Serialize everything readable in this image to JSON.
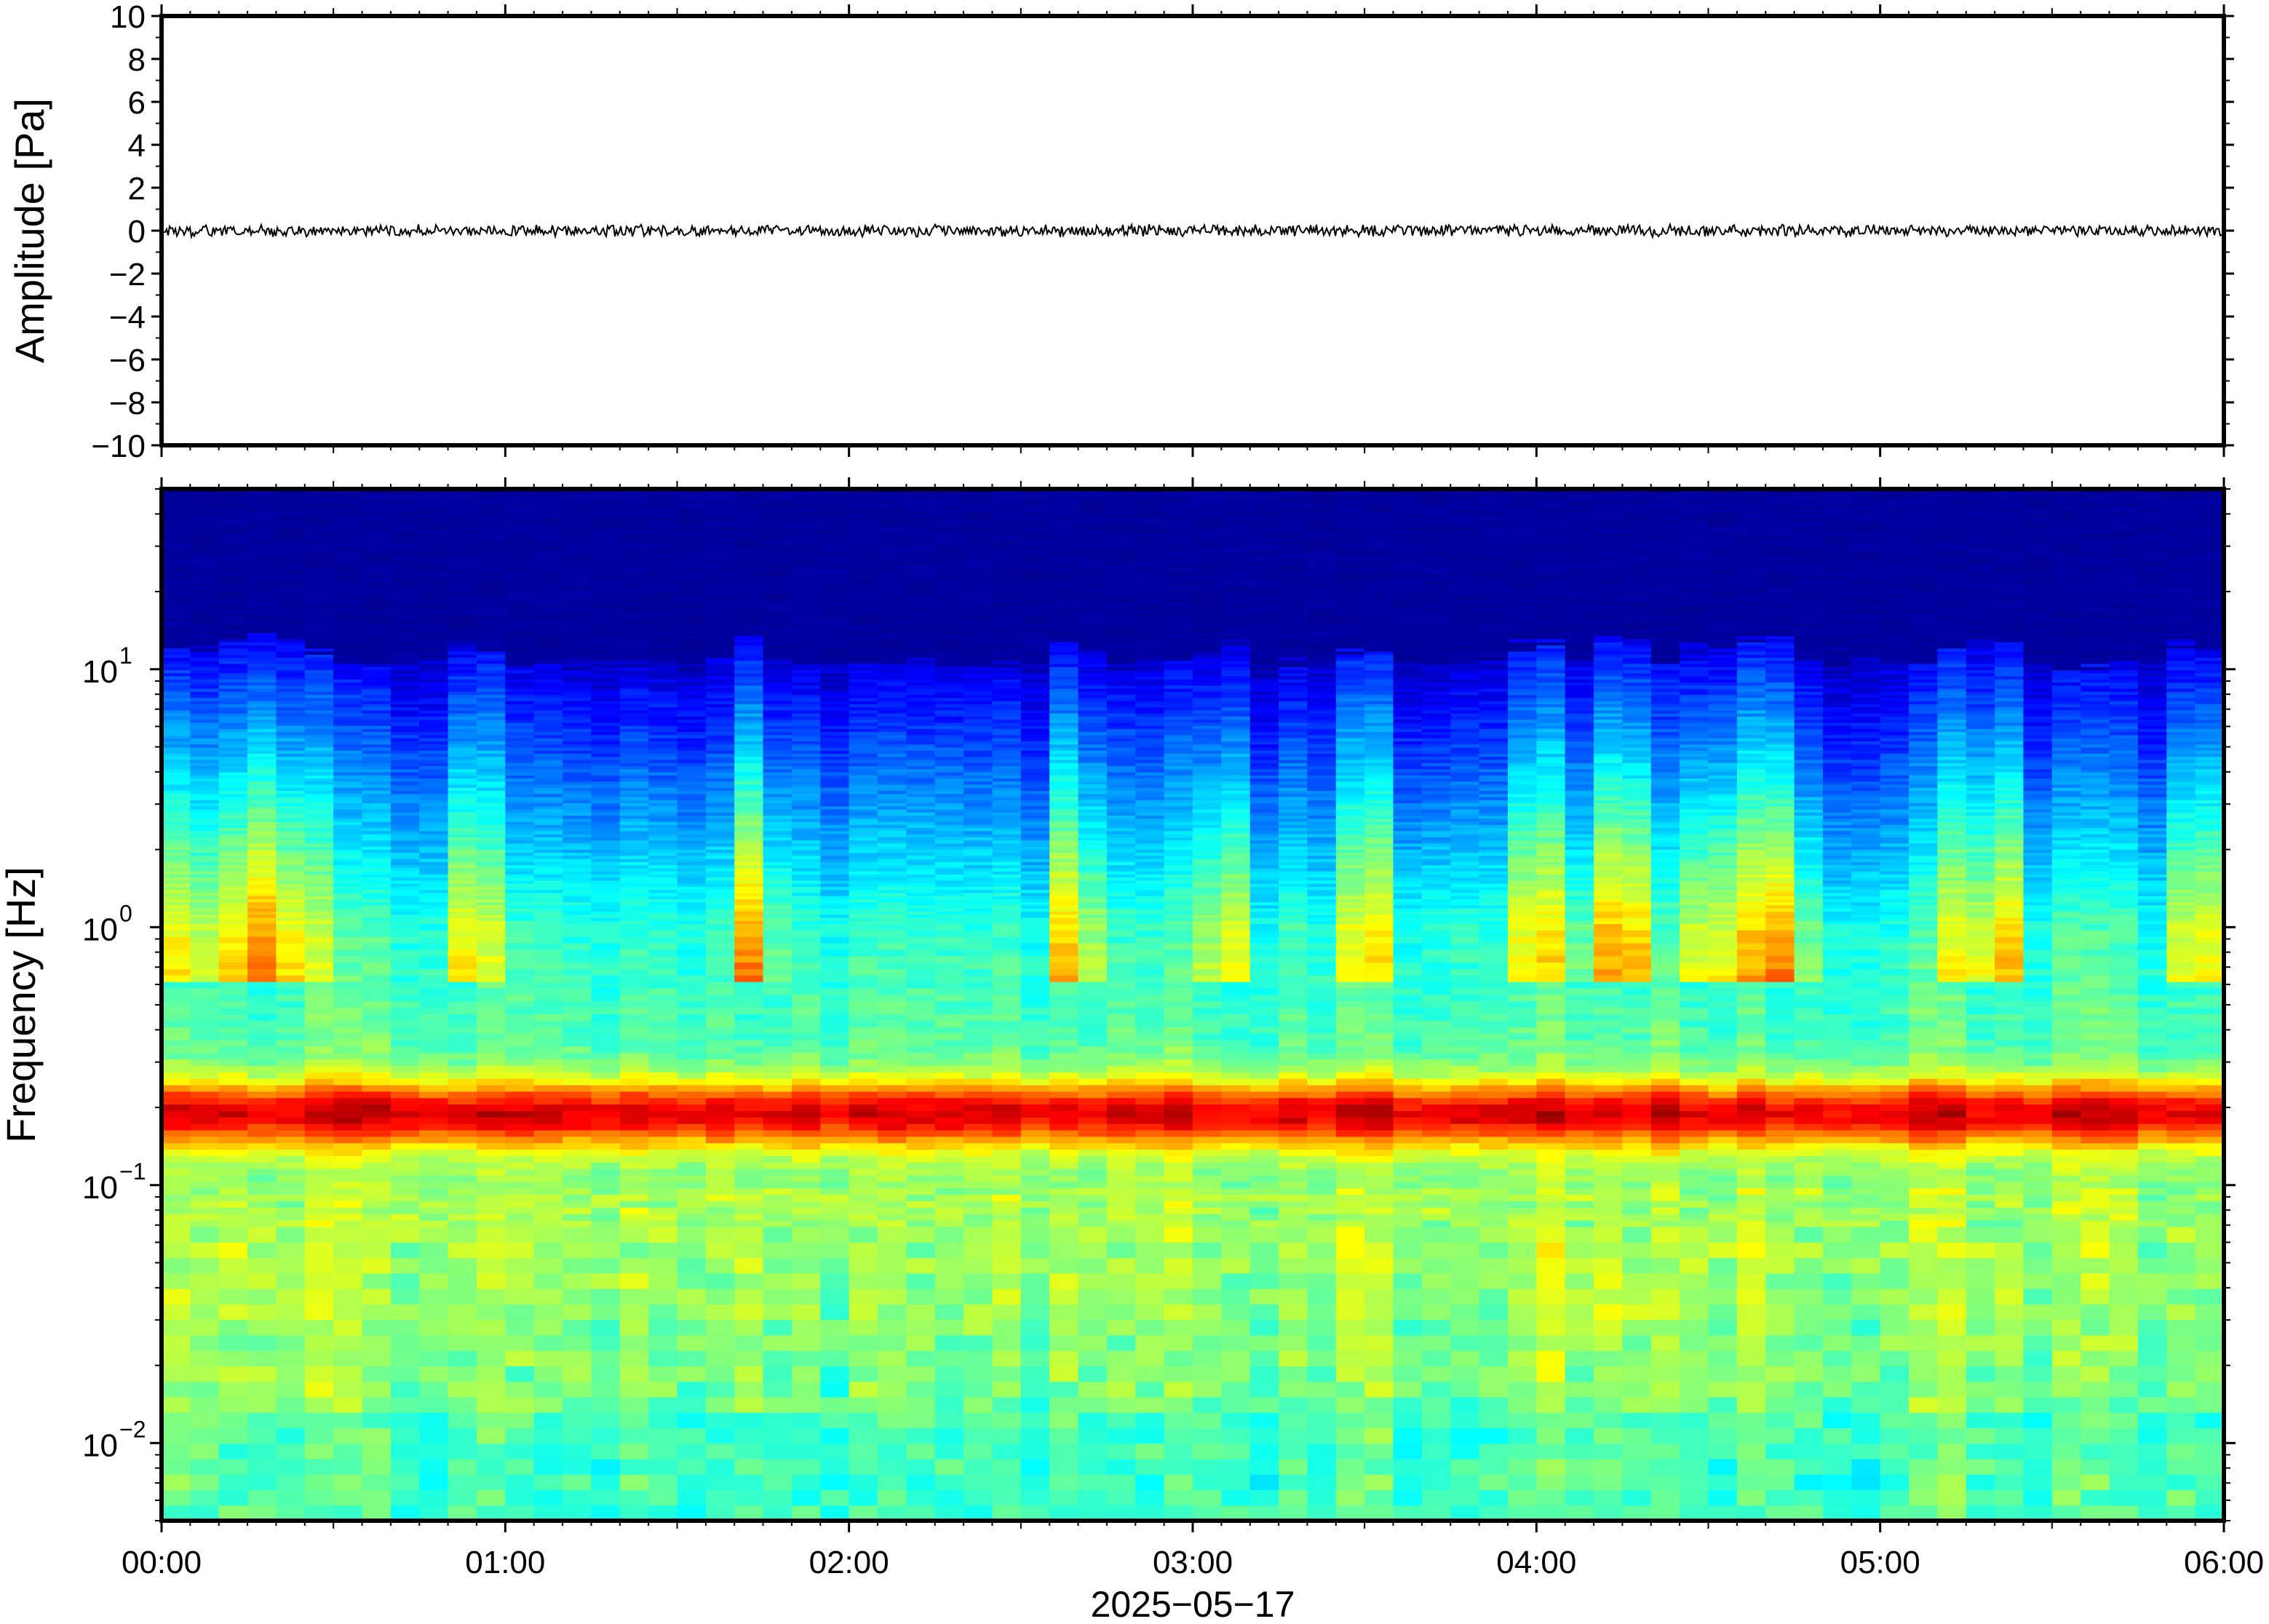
{
  "chart_data": [
    {
      "type": "line",
      "title": "",
      "ylabel": "Amplitude [Pa]",
      "xlabel": "2025−05−17",
      "ylim": [
        -10,
        10
      ],
      "y_ticks": [
        10,
        8,
        6,
        4,
        2,
        0,
        -2,
        -4,
        -6,
        -8,
        -10
      ],
      "y_tick_labels": [
        "10",
        "8",
        "6",
        "4",
        "2",
        "0",
        "−2",
        "−4",
        "−6",
        "−8",
        "−10"
      ],
      "x_range_hours": [
        0,
        6
      ],
      "series": [
        {
          "description_note": null,
          "values_summary": {
            "mean": 0.0,
            "typical_abs_max": 0.3
          }
        }
      ],
      "line_color": "#000000",
      "grid": false
    },
    {
      "type": "heatmap",
      "title": "",
      "ylabel": "Frequency [Hz]",
      "xlabel": "2025−05−17",
      "y_scale": "log",
      "ylim": [
        0.005,
        50
      ],
      "y_ticks": [
        {
          "value": 0.01,
          "base": "10",
          "exp": "−2"
        },
        {
          "value": 0.1,
          "base": "10",
          "exp": "−1"
        },
        {
          "value": 1,
          "base": "10",
          "exp": "0"
        },
        {
          "value": 10,
          "base": "10",
          "exp": "1"
        }
      ],
      "x_ticks": [
        {
          "hour": 0,
          "label": "00:00"
        },
        {
          "hour": 1,
          "label": "01:00"
        },
        {
          "hour": 2,
          "label": "02:00"
        },
        {
          "hour": 3,
          "label": "03:00"
        },
        {
          "hour": 4,
          "label": "04:00"
        },
        {
          "hour": 5,
          "label": "05:00"
        },
        {
          "hour": 6,
          "label": "06:00"
        }
      ],
      "colormap": "jet",
      "microbarom_peak_hz": 0.19,
      "energetic_time_columns_hours": [
        0.0,
        0.17,
        0.3,
        0.4,
        0.9,
        1.72,
        2.65,
        3.1,
        3.5,
        4.0,
        4.2,
        4.28,
        4.5,
        4.6,
        4.72,
        5.25,
        5.35,
        5.92
      ],
      "grid": false
    }
  ]
}
